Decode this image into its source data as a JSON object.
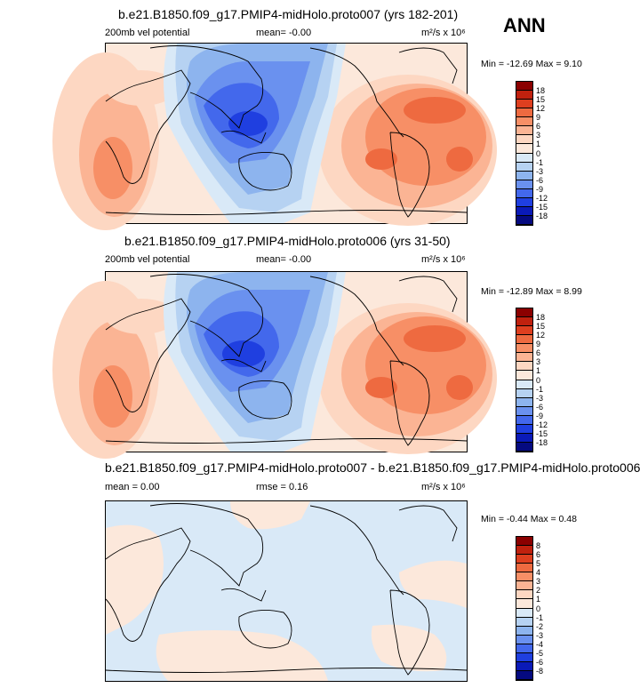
{
  "season": "ANN",
  "panels": [
    {
      "title": "b.e21.B1850.f09_g17.PMIP4-midHolo.proto007 (yrs 182-201)",
      "left_label": "200mb vel potential",
      "center_label": "mean=  -0.00",
      "right_label": "m²/s x 10⁶",
      "minmax": "Min = -12.69 Max =   9.10",
      "colorbar_labels": [
        "18",
        "15",
        "12",
        "9",
        "6",
        "3",
        "1",
        "0",
        "-1",
        "-3",
        "-6",
        "-9",
        "-12",
        "-15",
        "-18"
      ]
    },
    {
      "title": "b.e21.B1850.f09_g17.PMIP4-midHolo.proto006 (yrs 31-50)",
      "left_label": "200mb vel potential",
      "center_label": "mean=  -0.00",
      "right_label": "m²/s x 10⁶",
      "minmax": "Min = -12.89 Max =   8.99",
      "colorbar_labels": [
        "18",
        "15",
        "12",
        "9",
        "6",
        "3",
        "1",
        "0",
        "-1",
        "-3",
        "-6",
        "-9",
        "-12",
        "-15",
        "-18"
      ]
    },
    {
      "title": "b.e21.B1850.f09_g17.PMIP4-midHolo.proto007 - b.e21.B1850.f09_g17.PMIP4-midHolo.proto006",
      "left_label": "mean =   0.00",
      "center_label": "rmse =   0.16",
      "right_label": "m²/s x 10⁶",
      "minmax": "Min = -0.44 Max =  0.48",
      "colorbar_labels": [
        "8",
        "6",
        "5",
        "4",
        "3",
        "2",
        "1",
        "0",
        "-1",
        "-2",
        "-3",
        "-4",
        "-5",
        "-6",
        "-8"
      ]
    }
  ],
  "colors": {
    "palette": [
      "#8b0000",
      "#c0210e",
      "#de3f1f",
      "#ee6a40",
      "#f78f66",
      "#fbb494",
      "#fdd7c2",
      "#fce8db",
      "#d9e9f7",
      "#b6d2f2",
      "#8db4ee",
      "#6a91ef",
      "#4368ec",
      "#1f3fe0",
      "#0a1ab8",
      "#050a80"
    ]
  }
}
